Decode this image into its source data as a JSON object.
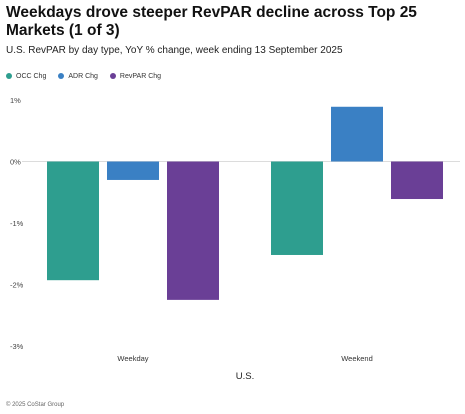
{
  "header": {
    "title": "Weekdays drove steeper RevPAR decline across Top 25 Markets (1 of 3)",
    "subtitle": "U.S. RevPAR by day type, YoY % change, week ending 13 September 2025"
  },
  "footer": {
    "copyright": "© 2025 CoStar Group"
  },
  "chart_data": {
    "type": "bar",
    "title": "Weekdays drove steeper RevPAR decline across Top 25 Markets (1 of 3)",
    "subtitle": "U.S. RevPAR by day type, YoY % change, week ending 13 September 2025",
    "categories": [
      "Weekday",
      "Weekend"
    ],
    "group_label": "U.S.",
    "series": [
      {
        "name": "OCC Chg",
        "color": "#2e9e8f",
        "values": [
          -1.93,
          -1.52
        ]
      },
      {
        "name": "ADR Chg",
        "color": "#3a80c4",
        "values": [
          -0.3,
          0.89
        ]
      },
      {
        "name": "RevPAR Chg",
        "color": "#6a3f96",
        "values": [
          -2.25,
          -0.61
        ]
      }
    ],
    "ylim": [
      -3,
      1
    ],
    "yticks": [
      1,
      0,
      -1,
      -2,
      -3
    ],
    "ytick_labels": [
      "1%",
      "0%",
      "-1%",
      "-2%",
      "-3%"
    ],
    "xlabel": "U.S.",
    "ylabel": "",
    "legend_position": "top-left",
    "grid": false,
    "zero_line": true
  }
}
